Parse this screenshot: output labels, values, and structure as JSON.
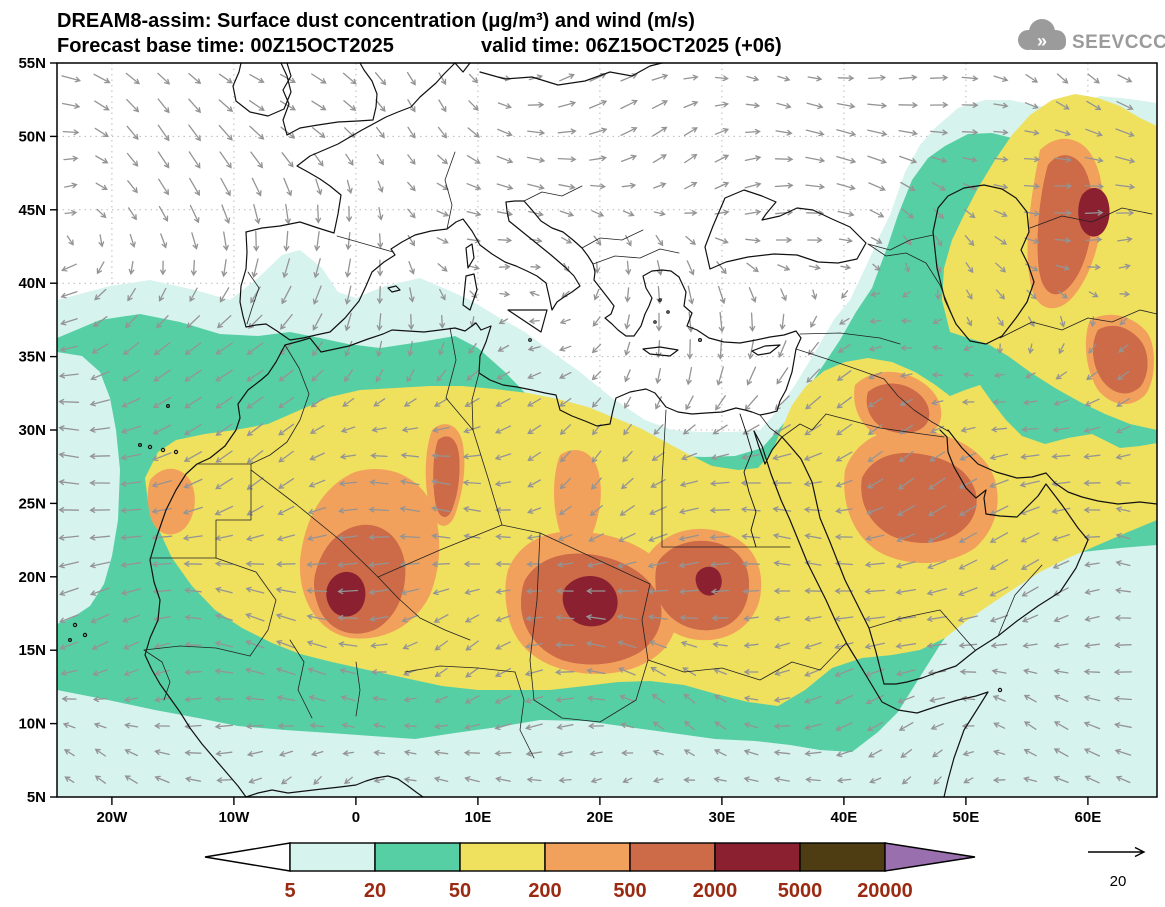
{
  "header": {
    "title": "DREAM8-assim: Surface dust concentration (μg/m³) and wind (m/s)",
    "forecast_line": "Forecast base time: 00Z15OCT2025",
    "valid_line": "valid time: 06Z15OCT2025 (+06)",
    "logo_text": "SEEVCCC"
  },
  "chart_data": {
    "type": "heatmap",
    "title": "DREAM8-assim: Surface dust concentration (μg/m³) and wind (m/s)",
    "subtitle": "Forecast base time: 00Z15OCT2025  valid time: 06Z15OCT2025 (+06)",
    "model": "DREAM8-assim",
    "variable": "Surface dust concentration",
    "units": "μg/m³",
    "wind_units": "m/s",
    "forecast_base_time": "00Z15OCT2025",
    "valid_time": "06Z15OCT2025",
    "forecast_step": "+06",
    "x_axis": {
      "label": "longitude",
      "ticks": [
        "20W",
        "10W",
        "0",
        "10E",
        "20E",
        "30E",
        "40E",
        "50E",
        "60E"
      ],
      "range_deg": [
        -24.5,
        65.5
      ]
    },
    "y_axis": {
      "label": "latitude",
      "ticks": [
        "55N",
        "50N",
        "45N",
        "40N",
        "35N",
        "30N",
        "25N",
        "20N",
        "15N",
        "10N",
        "5N"
      ],
      "range_deg": [
        55,
        5
      ]
    },
    "colorbar": {
      "levels": [
        5,
        20,
        50,
        200,
        500,
        2000,
        5000,
        20000
      ],
      "colors": [
        "#ffffff",
        "#d7f3ee",
        "#57cfa5",
        "#efe05e",
        "#f2a15c",
        "#cd6a48",
        "#8a2030",
        "#4e3d13",
        "#9a6fae"
      ],
      "label_color": "#9a2b12"
    },
    "wind_reference": {
      "value": "20"
    },
    "dust_maxima": [
      {
        "lon_deg": -1,
        "lat_deg": 18,
        "value_range": "2000-5000"
      },
      {
        "lon_deg": 19,
        "lat_deg": 18.5,
        "value_range": "2000-5000"
      },
      {
        "lon_deg": 29,
        "lat_deg": 21,
        "value_range": "500-2000"
      },
      {
        "lon_deg": 46,
        "lat_deg": 24,
        "value_range": "500-2000"
      },
      {
        "lon_deg": 60,
        "lat_deg": 44,
        "value_range": "2000-5000"
      }
    ],
    "legend_position": "bottom",
    "grid": "dotted"
  }
}
